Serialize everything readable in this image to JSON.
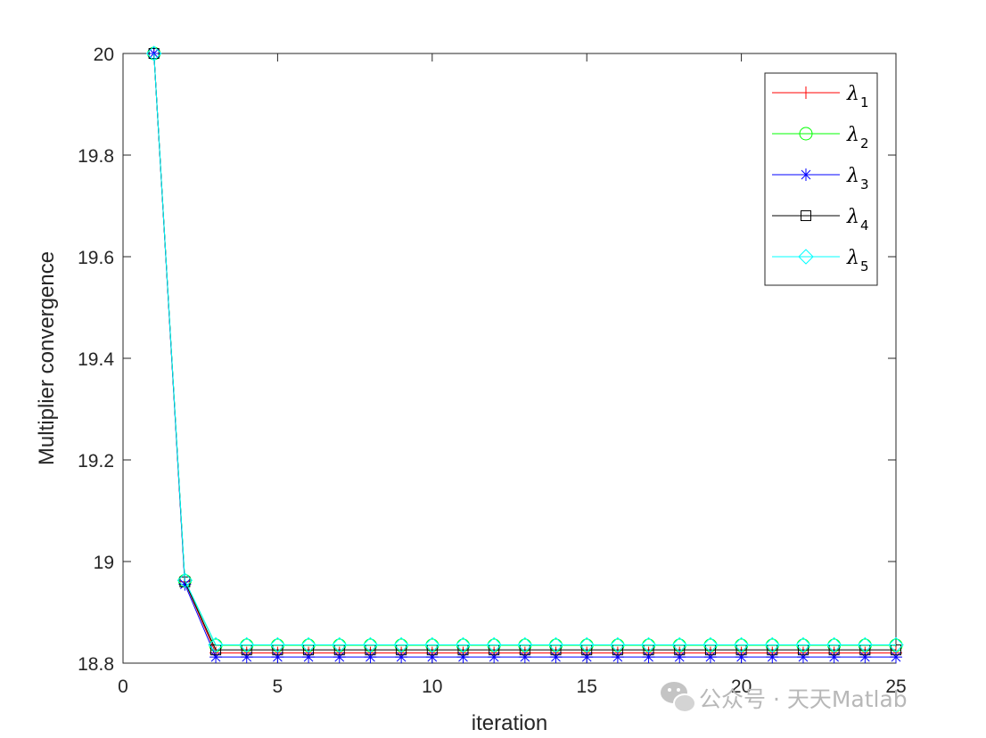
{
  "chart_data": {
    "type": "line",
    "title": "",
    "xlabel": "iteration",
    "ylabel": "Multiplier convergence",
    "xlim": [
      0,
      25
    ],
    "ylim": [
      18.8,
      20
    ],
    "xticks": [
      0,
      5,
      10,
      15,
      20,
      25
    ],
    "xtick_labels": [
      "0",
      "5",
      "10",
      "15",
      "20",
      "25"
    ],
    "yticks": [
      18.8,
      19,
      19.2,
      19.4,
      19.6,
      19.8,
      20
    ],
    "ytick_labels": [
      "18.8",
      "19",
      "19.2",
      "19.4",
      "19.6",
      "19.8",
      "20"
    ],
    "grid": false,
    "legend_position": "top-right",
    "x": [
      1,
      2,
      3,
      4,
      5,
      6,
      7,
      8,
      9,
      10,
      11,
      12,
      13,
      14,
      15,
      16,
      17,
      18,
      19,
      20,
      21,
      22,
      23,
      24,
      25
    ],
    "series": [
      {
        "name": "λ",
        "sub": "1",
        "color": "#ff0000",
        "marker": "plus",
        "values": [
          20,
          18.96,
          18.82,
          18.82,
          18.82,
          18.82,
          18.82,
          18.82,
          18.82,
          18.82,
          18.82,
          18.82,
          18.82,
          18.82,
          18.82,
          18.82,
          18.82,
          18.82,
          18.82,
          18.82,
          18.82,
          18.82,
          18.82,
          18.82,
          18.82
        ]
      },
      {
        "name": "λ",
        "sub": "2",
        "color": "#00ff00",
        "marker": "circle",
        "values": [
          20,
          18.962,
          18.835,
          18.835,
          18.835,
          18.835,
          18.835,
          18.835,
          18.835,
          18.835,
          18.835,
          18.835,
          18.835,
          18.835,
          18.835,
          18.835,
          18.835,
          18.835,
          18.835,
          18.835,
          18.835,
          18.835,
          18.835,
          18.835,
          18.835
        ]
      },
      {
        "name": "λ",
        "sub": "3",
        "color": "#0000ff",
        "marker": "asterisk",
        "values": [
          20,
          18.955,
          18.812,
          18.812,
          18.812,
          18.812,
          18.812,
          18.812,
          18.812,
          18.812,
          18.812,
          18.812,
          18.812,
          18.812,
          18.812,
          18.812,
          18.812,
          18.812,
          18.812,
          18.812,
          18.812,
          18.812,
          18.812,
          18.812,
          18.812
        ]
      },
      {
        "name": "λ",
        "sub": "4",
        "color": "#000000",
        "marker": "square",
        "values": [
          20,
          18.96,
          18.826,
          18.826,
          18.826,
          18.826,
          18.826,
          18.826,
          18.826,
          18.826,
          18.826,
          18.826,
          18.826,
          18.826,
          18.826,
          18.826,
          18.826,
          18.826,
          18.826,
          18.826,
          18.826,
          18.826,
          18.826,
          18.826,
          18.826
        ]
      },
      {
        "name": "λ",
        "sub": "5",
        "color": "#00ffff",
        "marker": "diamond",
        "values": [
          20,
          18.963,
          18.836,
          18.836,
          18.836,
          18.836,
          18.836,
          18.836,
          18.836,
          18.836,
          18.836,
          18.836,
          18.836,
          18.836,
          18.836,
          18.836,
          18.836,
          18.836,
          18.836,
          18.836,
          18.836,
          18.836,
          18.836,
          18.836,
          18.836
        ]
      }
    ]
  },
  "watermark": {
    "text": "公众号 · 天天Matlab",
    "icon": "wechat-icon"
  }
}
